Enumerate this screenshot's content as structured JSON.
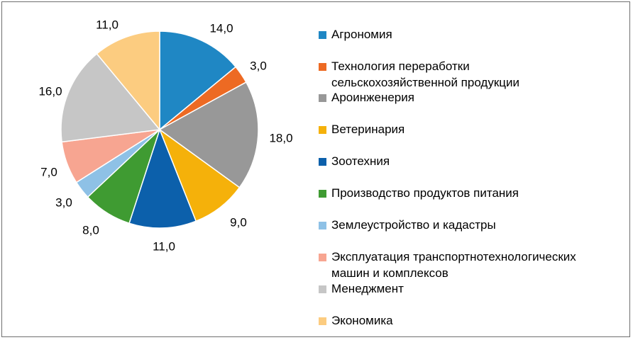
{
  "chart_data": {
    "type": "pie",
    "categories": [
      "Агрономия",
      "Технология переработки\nсельскохозяйственной продукции",
      "Ароинженерия",
      "Ветеринария",
      "Зоотехния",
      "Производство продуктов питания",
      "Землеустройство и кадастры",
      "Эксплуатация транспортнотехнологических\nмашин и комплексов",
      "Менеджмент",
      "Экономика"
    ],
    "values": [
      14,
      3,
      18,
      9,
      11,
      8,
      3,
      7,
      16,
      11
    ],
    "value_labels": [
      "14,0",
      "3,0",
      "18,0",
      "9,0",
      "11,0",
      "8,0",
      "3,0",
      "7,0",
      "16,0",
      "11,0"
    ],
    "colors": [
      "#1f87c4",
      "#ed6a23",
      "#989898",
      "#f5b10a",
      "#0c60ab",
      "#3f9b32",
      "#8ec1e6",
      "#f7a591",
      "#c6c6c6",
      "#fccc80"
    ],
    "title": "",
    "legend_position": "right"
  }
}
